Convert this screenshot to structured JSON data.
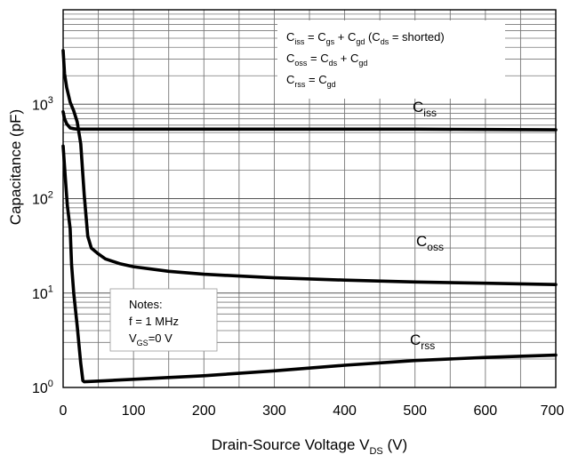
{
  "chart_data": {
    "type": "line",
    "xlabel": {
      "main": "Drain-Source Voltage V",
      "sub": "DS",
      "unit": "(V)"
    },
    "ylabel": "Capacitance (pF)",
    "xlim": [
      0,
      700
    ],
    "ylim": [
      1,
      10000
    ],
    "y_scale": "log",
    "grid": true,
    "x_ticks": [
      0,
      100,
      200,
      300,
      400,
      500,
      600,
      700
    ],
    "y_ticks": [
      {
        "value": 1,
        "base": "10",
        "exp": "0"
      },
      {
        "value": 10,
        "base": "10",
        "exp": "1"
      },
      {
        "value": 100,
        "base": "10",
        "exp": "2"
      },
      {
        "value": 1000,
        "base": "10",
        "exp": "3"
      }
    ],
    "series": [
      {
        "name": "Ciss",
        "label_main": "C",
        "label_sub": "iss",
        "x": [
          0,
          2,
          5,
          10,
          15,
          20,
          30,
          50,
          100,
          200,
          300,
          400,
          500,
          600,
          700
        ],
        "y": [
          830,
          700,
          620,
          560,
          550,
          545,
          545,
          545,
          545,
          545,
          545,
          545,
          545,
          540,
          535
        ]
      },
      {
        "name": "Coss",
        "label_main": "C",
        "label_sub": "oss",
        "x": [
          0,
          2,
          5,
          10,
          15,
          20,
          25,
          30,
          35,
          40,
          50,
          60,
          80,
          100,
          150,
          200,
          300,
          400,
          500,
          600,
          700
        ],
        "y": [
          3700,
          2100,
          1500,
          1050,
          850,
          650,
          380,
          110,
          40,
          30,
          26,
          23,
          20.5,
          19,
          17,
          15.8,
          14.5,
          13.7,
          13.1,
          12.7,
          12.3
        ]
      },
      {
        "name": "Crss",
        "label_main": "C",
        "label_sub": "rss",
        "x": [
          0,
          3,
          6,
          10,
          12,
          15,
          20,
          25,
          28,
          30,
          40,
          60,
          100,
          200,
          300,
          400,
          500,
          600,
          700
        ],
        "y": [
          360,
          170,
          85,
          48,
          20,
          10,
          4.5,
          1.8,
          1.18,
          1.15,
          1.16,
          1.18,
          1.22,
          1.33,
          1.5,
          1.72,
          1.93,
          2.08,
          2.2
        ]
      }
    ],
    "annotations": {
      "formulas": [
        [
          {
            "t": "C"
          },
          {
            "t": "iss",
            "sub": true
          },
          {
            "t": " = C"
          },
          {
            "t": "gs",
            "sub": true
          },
          {
            "t": " + C"
          },
          {
            "t": "gd",
            "sub": true
          },
          {
            "t": " (C"
          },
          {
            "t": "ds",
            "sub": true
          },
          {
            "t": " = shorted)"
          }
        ],
        [
          {
            "t": "C"
          },
          {
            "t": "oss",
            "sub": true
          },
          {
            "t": " = C"
          },
          {
            "t": "ds",
            "sub": true
          },
          {
            "t": " + C"
          },
          {
            "t": "gd",
            "sub": true
          }
        ],
        [
          {
            "t": "C"
          },
          {
            "t": "rss",
            "sub": true
          },
          {
            "t": " = C"
          },
          {
            "t": "gd",
            "sub": true
          }
        ]
      ],
      "notes": [
        [
          {
            "t": "Notes:"
          }
        ],
        [
          {
            "t": "f = 1 MHz"
          }
        ],
        [
          {
            "t": "V"
          },
          {
            "t": "GS",
            "sub": true
          },
          {
            "t": "=0 V"
          }
        ]
      ]
    },
    "colors": {
      "line": "#000000",
      "grid": "#777777",
      "background": "#ffffff"
    }
  }
}
